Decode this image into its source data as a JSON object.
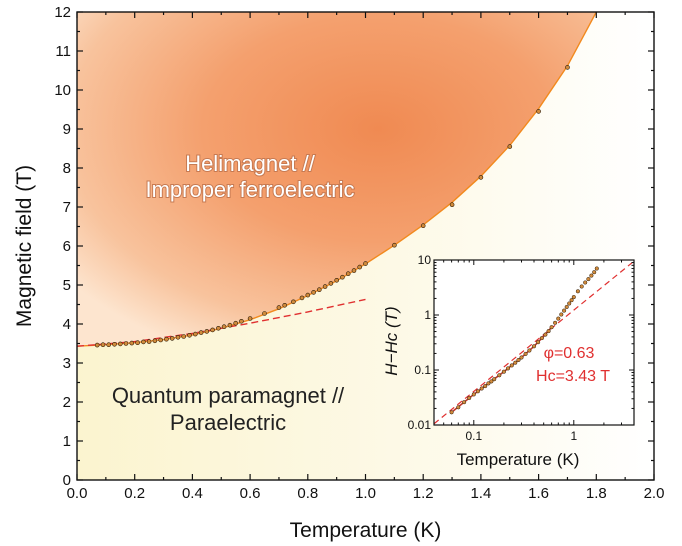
{
  "chart_data": [
    {
      "type": "scatter",
      "title": "",
      "xlabel": "Temperature (K)",
      "ylabel": "Magnetic field (T)",
      "xlim": [
        0.0,
        2.0
      ],
      "ylim": [
        0,
        12
      ],
      "xticks": [
        "0.0",
        "0.2",
        "0.4",
        "0.6",
        "0.8",
        "1.0",
        "1.2",
        "1.4",
        "1.6",
        "1.8",
        "2.0"
      ],
      "yticks": [
        "0",
        "1",
        "2",
        "3",
        "4",
        "5",
        "6",
        "7",
        "8",
        "9",
        "10",
        "11",
        "12"
      ],
      "grid": false,
      "regions": [
        {
          "label_lines": [
            "Helimagnet //",
            "Improper ferroelectric"
          ],
          "color": "#f0915a"
        },
        {
          "label_lines": [
            "Quantum paramagnet //",
            "Paraelectric"
          ],
          "color": "#fbf6d3"
        }
      ],
      "series": [
        {
          "style": "points",
          "color": "#d18b3c",
          "x": [
            0.07,
            0.09,
            0.11,
            0.13,
            0.15,
            0.17,
            0.19,
            0.21,
            0.23,
            0.25,
            0.27,
            0.29,
            0.31,
            0.33,
            0.35,
            0.37,
            0.39,
            0.41,
            0.43,
            0.45,
            0.47,
            0.49,
            0.51,
            0.53,
            0.55,
            0.57,
            0.6,
            0.65,
            0.7,
            0.72,
            0.75,
            0.78,
            0.8,
            0.82,
            0.84,
            0.86,
            0.88,
            0.9,
            0.92,
            0.94,
            0.96,
            0.98,
            1.0,
            1.1,
            1.2,
            1.3,
            1.4,
            1.5,
            1.6,
            1.7
          ],
          "y": [
            3.46,
            3.47,
            3.47,
            3.48,
            3.49,
            3.5,
            3.51,
            3.52,
            3.54,
            3.55,
            3.57,
            3.59,
            3.61,
            3.63,
            3.66,
            3.68,
            3.71,
            3.74,
            3.78,
            3.81,
            3.85,
            3.89,
            3.93,
            3.97,
            4.02,
            4.07,
            4.14,
            4.27,
            4.42,
            4.48,
            4.57,
            4.67,
            4.74,
            4.81,
            4.88,
            4.96,
            5.04,
            5.12,
            5.2,
            5.29,
            5.37,
            5.46,
            5.55,
            6.02,
            6.52,
            7.06,
            7.76,
            8.55,
            9.45,
            10.58
          ]
        },
        {
          "style": "fit-line",
          "color": "#f28a1e",
          "x": [
            0.0,
            0.1,
            0.2,
            0.3,
            0.4,
            0.5,
            0.6,
            0.7,
            0.8,
            0.9,
            1.0,
            1.1,
            1.2,
            1.3,
            1.4,
            1.5,
            1.6,
            1.7,
            1.8
          ],
          "y": [
            3.43,
            3.47,
            3.52,
            3.6,
            3.72,
            3.89,
            4.11,
            4.39,
            4.73,
            5.11,
            5.54,
            6.02,
            6.54,
            7.12,
            7.79,
            8.58,
            9.52,
            10.62,
            12.0
          ]
        },
        {
          "style": "dashed-line",
          "color": "#e03030",
          "x": [
            0.0,
            0.2,
            0.4,
            0.6,
            0.8,
            1.0
          ],
          "y": [
            3.43,
            3.55,
            3.76,
            4.02,
            4.31,
            4.63
          ]
        }
      ]
    },
    {
      "type": "scatter",
      "title": "",
      "xlabel": "Temperature (K)",
      "ylabel": "H−Hc (T)",
      "xscale": "log",
      "yscale": "log",
      "xlim": [
        0.04,
        4
      ],
      "ylim": [
        0.01,
        10
      ],
      "xticks": [
        "0.1",
        "1"
      ],
      "yticks": [
        "0.01",
        "0.1",
        "1",
        "10"
      ],
      "grid": false,
      "annotations": [
        "φ=0.63",
        "Hc=3.43 T"
      ],
      "annotation_color": "#e03030",
      "series": [
        {
          "style": "points",
          "color": "#d18b3c",
          "x": [
            0.06,
            0.07,
            0.08,
            0.09,
            0.1,
            0.11,
            0.12,
            0.13,
            0.14,
            0.15,
            0.16,
            0.18,
            0.2,
            0.22,
            0.24,
            0.26,
            0.28,
            0.3,
            0.33,
            0.36,
            0.4,
            0.44,
            0.48,
            0.52,
            0.56,
            0.6,
            0.65,
            0.7,
            0.75,
            0.8,
            0.85,
            0.9,
            0.95,
            1.0,
            1.1,
            1.2,
            1.3,
            1.4,
            1.5,
            1.6,
            1.7
          ],
          "y": [
            0.017,
            0.021,
            0.026,
            0.031,
            0.036,
            0.041,
            0.046,
            0.051,
            0.057,
            0.062,
            0.068,
            0.08,
            0.093,
            0.107,
            0.121,
            0.136,
            0.152,
            0.169,
            0.196,
            0.226,
            0.27,
            0.32,
            0.38,
            0.44,
            0.51,
            0.6,
            0.72,
            0.86,
            1.02,
            1.2,
            1.4,
            1.62,
            1.86,
            2.12,
            2.7,
            3.3,
            3.9,
            4.5,
            5.2,
            6.0,
            7.0
          ]
        },
        {
          "style": "fit-line",
          "color": "#c0392b",
          "x": [
            0.06,
            0.1,
            0.2,
            0.3,
            0.4,
            0.5,
            0.6
          ],
          "y": [
            0.017,
            0.036,
            0.093,
            0.169,
            0.27,
            0.41,
            0.6
          ]
        },
        {
          "style": "dashed-line",
          "color": "#e03030",
          "x": [
            0.04,
            4.0
          ],
          "y": [
            0.0105,
            9.5
          ]
        }
      ]
    }
  ]
}
